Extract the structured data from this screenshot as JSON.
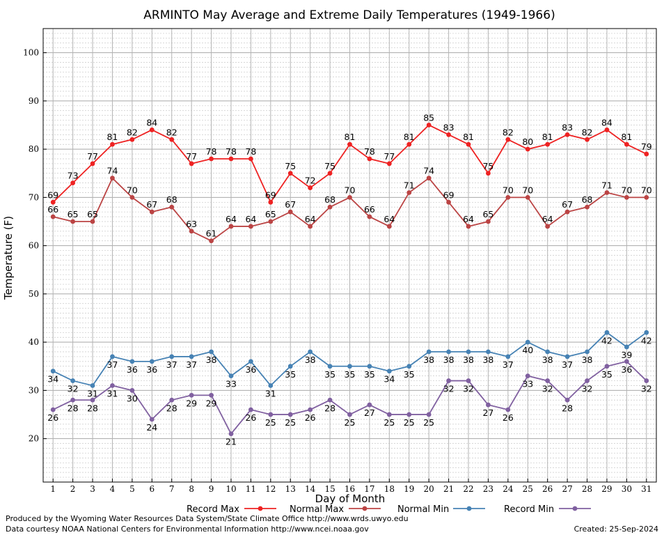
{
  "chart_data": {
    "type": "line",
    "title": "ARMINTO May Average and Extreme Daily Temperatures (1949-1966)",
    "xlabel": "Day of Month",
    "ylabel": "Temperature (F)",
    "x": [
      1,
      2,
      3,
      4,
      5,
      6,
      7,
      8,
      9,
      10,
      11,
      12,
      13,
      14,
      15,
      16,
      17,
      18,
      19,
      20,
      21,
      22,
      23,
      24,
      25,
      26,
      27,
      28,
      29,
      30,
      31
    ],
    "xlim": [
      0.5,
      31.5
    ],
    "ylim": [
      11,
      105
    ],
    "yticks": [
      20,
      30,
      40,
      50,
      60,
      70,
      80,
      90,
      100
    ],
    "grid": true,
    "legend_position": "bottom",
    "series": [
      {
        "name": "Record Max",
        "color": "#ee2222",
        "values": [
          69,
          73,
          77,
          81,
          82,
          84,
          82,
          77,
          78,
          78,
          78,
          69,
          75,
          72,
          75,
          81,
          78,
          77,
          81,
          85,
          83,
          81,
          75,
          82,
          80,
          81,
          83,
          82,
          84,
          81,
          79
        ]
      },
      {
        "name": "Normal Max",
        "color": "#bb4444",
        "values": [
          66,
          65,
          65,
          74,
          70,
          67,
          68,
          63,
          61,
          64,
          64,
          65,
          67,
          64,
          68,
          70,
          66,
          64,
          71,
          74,
          69,
          64,
          65,
          70,
          70,
          64,
          67,
          68,
          71,
          70,
          70
        ]
      },
      {
        "name": "Normal Min",
        "color": "#4682b4",
        "values": [
          34,
          32,
          31,
          37,
          36,
          36,
          37,
          37,
          38,
          33,
          36,
          31,
          35,
          38,
          35,
          35,
          35,
          34,
          35,
          38,
          38,
          38,
          38,
          37,
          40,
          38,
          37,
          38,
          42,
          39,
          42
        ]
      },
      {
        "name": "Record Min",
        "color": "#8060a0",
        "values": [
          26,
          28,
          28,
          31,
          30,
          24,
          28,
          29,
          29,
          21,
          26,
          25,
          25,
          26,
          28,
          25,
          27,
          25,
          25,
          25,
          32,
          32,
          27,
          26,
          33,
          32,
          28,
          32,
          35,
          36,
          32
        ]
      }
    ]
  },
  "footer": {
    "produced_by": "Produced by the Wyoming Water Resources Data System/State Climate Office http://www.wrds.uwyo.edu",
    "data_courtesy": "Data courtesy NOAA National Centers for Environmental Information http://www.ncei.noaa.gov",
    "created": "Created:  25-Sep-2024"
  }
}
